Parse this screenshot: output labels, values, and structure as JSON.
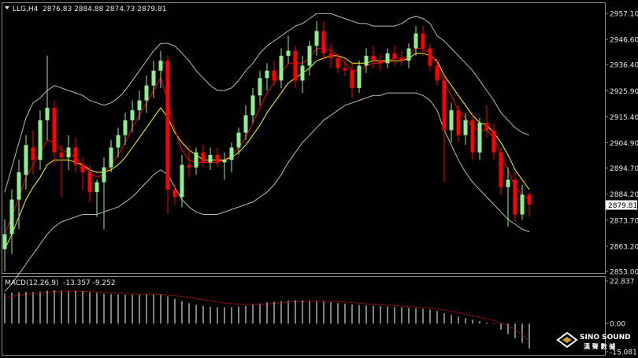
{
  "header": {
    "symbol": "LLG,H4",
    "ohlc": "2876.83 2884.88 2874.73 2879.81"
  },
  "macd_header": {
    "label": "MACD(12,26,9)",
    "values": "-13.357 -9.252"
  },
  "logo": {
    "line1": "SINO SOUND",
    "line2": "漢 聲 數 據"
  },
  "colors": {
    "background": "#000000",
    "up": "#90ee90",
    "down": "#ff0000",
    "bollinger": "#bcbcbc",
    "ma_fast": "#ff0000",
    "ma_slow": "#ffff00",
    "macd_hist": "#ffffff",
    "macd_signal": "#ff0000",
    "price_tag_bg": "#ffffff",
    "price_tag_text": "#000000"
  },
  "chart_data": [
    {
      "type": "candlestick",
      "title": "LLG,H4",
      "ylim": [
        2853.0,
        2957.1
      ],
      "y_ticks": [
        "2957.10",
        "2946.60",
        "2936.40",
        "2925.90",
        "2915.40",
        "2904.90",
        "2894.70",
        "2884.20",
        "2879.81",
        "2873.70",
        "2863.20",
        "2853.00"
      ],
      "current_price": 2879.81,
      "grid": false,
      "candles": [
        [
          2862.0,
          2874.0,
          2853.0,
          2868.0
        ],
        [
          2868.0,
          2886.0,
          2860.0,
          2882.0
        ],
        [
          2882.0,
          2898.0,
          2870.0,
          2893.0
        ],
        [
          2892.0,
          2908.0,
          2886.0,
          2904.0
        ],
        [
          2903.0,
          2910.0,
          2892.0,
          2898.0
        ],
        [
          2898.0,
          2918.0,
          2894.0,
          2914.0
        ],
        [
          2914.0,
          2940.0,
          2906.0,
          2919.0
        ],
        [
          2919.0,
          2922.0,
          2896.0,
          2901.0
        ],
        [
          2901.0,
          2904.0,
          2883.0,
          2899.0
        ],
        [
          2899.0,
          2908.0,
          2894.0,
          2903.0
        ],
        [
          2903.0,
          2907.0,
          2893.0,
          2896.0
        ],
        [
          2896.0,
          2899.0,
          2886.0,
          2893.0
        ],
        [
          2893.0,
          2896.0,
          2881.0,
          2885.0
        ],
        [
          2885.0,
          2890.0,
          2875.0,
          2889.0
        ],
        [
          2889.0,
          2899.0,
          2870.0,
          2895.0
        ],
        [
          2895.0,
          2906.0,
          2893.0,
          2903.0
        ],
        [
          2903.0,
          2911.0,
          2899.0,
          2908.0
        ],
        [
          2908.0,
          2917.0,
          2904.0,
          2914.0
        ],
        [
          2914.0,
          2922.0,
          2909.0,
          2918.0
        ],
        [
          2918.0,
          2926.0,
          2914.0,
          2922.0
        ],
        [
          2922.0,
          2932.0,
          2917.0,
          2928.0
        ],
        [
          2928.0,
          2938.0,
          2923.0,
          2934.0
        ],
        [
          2934.0,
          2942.0,
          2927.0,
          2938.0
        ],
        [
          2938.0,
          2940.0,
          2876.0,
          2886.0
        ],
        [
          2886.0,
          2888.0,
          2880.0,
          2883.0
        ],
        [
          2883.0,
          2900.0,
          2879.0,
          2896.0
        ],
        [
          2896.0,
          2904.0,
          2891.0,
          2895.0
        ],
        [
          2895.0,
          2903.0,
          2892.0,
          2901.0
        ],
        [
          2901.0,
          2904.0,
          2895.0,
          2897.0
        ],
        [
          2897.0,
          2903.0,
          2894.0,
          2900.0
        ],
        [
          2900.0,
          2903.0,
          2895.0,
          2897.0
        ],
        [
          2897.0,
          2901.0,
          2890.0,
          2898.0
        ],
        [
          2898.0,
          2905.0,
          2893.0,
          2903.0
        ],
        [
          2903.0,
          2911.0,
          2900.0,
          2909.0
        ],
        [
          2909.0,
          2920.0,
          2906.0,
          2916.0
        ],
        [
          2916.0,
          2927.0,
          2913.0,
          2924.0
        ],
        [
          2924.0,
          2934.0,
          2920.0,
          2931.0
        ],
        [
          2931.0,
          2937.0,
          2926.0,
          2934.0
        ],
        [
          2934.0,
          2938.0,
          2928.0,
          2930.0
        ],
        [
          2930.0,
          2943.0,
          2927.0,
          2940.0
        ],
        [
          2940.0,
          2948.0,
          2937.0,
          2942.0
        ],
        [
          2942.0,
          2944.0,
          2927.0,
          2930.0
        ],
        [
          2930.0,
          2940.0,
          2925.0,
          2936.0
        ],
        [
          2936.0,
          2946.0,
          2932.0,
          2944.0
        ],
        [
          2944.0,
          2954.0,
          2940.0,
          2950.0
        ],
        [
          2950.0,
          2954.0,
          2938.0,
          2941.0
        ],
        [
          2941.0,
          2945.0,
          2935.0,
          2939.0
        ],
        [
          2939.0,
          2941.0,
          2933.0,
          2935.0
        ],
        [
          2935.0,
          2938.0,
          2932.0,
          2934.0
        ],
        [
          2934.0,
          2937.0,
          2923.0,
          2927.0
        ],
        [
          2927.0,
          2938.0,
          2925.0,
          2936.0
        ],
        [
          2936.0,
          2943.0,
          2933.0,
          2940.0
        ],
        [
          2940.0,
          2944.0,
          2935.0,
          2938.0
        ],
        [
          2938.0,
          2941.0,
          2934.0,
          2937.0
        ],
        [
          2937.0,
          2943.0,
          2935.0,
          2941.0
        ],
        [
          2941.0,
          2944.0,
          2936.0,
          2939.0
        ],
        [
          2939.0,
          2942.0,
          2936.0,
          2938.0
        ],
        [
          2938.0,
          2945.0,
          2935.0,
          2943.0
        ],
        [
          2943.0,
          2952.0,
          2940.0,
          2949.0
        ],
        [
          2949.0,
          2952.0,
          2940.0,
          2943.0
        ],
        [
          2943.0,
          2945.0,
          2934.0,
          2936.0
        ],
        [
          2936.0,
          2939.0,
          2928.0,
          2930.0
        ],
        [
          2930.0,
          2932.0,
          2889.0,
          2910.0
        ],
        [
          2910.0,
          2921.0,
          2905.0,
          2918.0
        ],
        [
          2918.0,
          2920.0,
          2905.0,
          2908.0
        ],
        [
          2908.0,
          2917.0,
          2904.0,
          2914.0
        ],
        [
          2914.0,
          2917.0,
          2898.0,
          2901.0
        ],
        [
          2901.0,
          2915.0,
          2898.0,
          2913.0
        ],
        [
          2913.0,
          2920.0,
          2907.0,
          2910.0
        ],
        [
          2910.0,
          2913.0,
          2898.0,
          2901.0
        ],
        [
          2901.0,
          2903.0,
          2884.0,
          2887.0
        ],
        [
          2887.0,
          2895.0,
          2871.0,
          2890.0
        ],
        [
          2890.0,
          2893.0,
          2873.0,
          2876.0
        ],
        [
          2876.0,
          2888.0,
          2874.0,
          2884.0
        ],
        [
          2884.0,
          2885.0,
          2875.0,
          2880.0
        ]
      ],
      "ma_fast": [
        2868.0,
        2875.0,
        2883.0,
        2891.0,
        2896.0,
        2901.0,
        2906.0,
        2905.0,
        2902.0,
        2901.0,
        2899.0,
        2896.0,
        2893.0,
        2891.0,
        2892.0,
        2896.0,
        2900.0,
        2905.0,
        2911.0,
        2916.0,
        2921.0,
        2926.0,
        2931.0,
        2922.0,
        2910.0,
        2902.0,
        2898.0,
        2897.0,
        2897.0,
        2897.0,
        2897.0,
        2898.0,
        2900.0,
        2903.0,
        2907.0,
        2913.0,
        2919.0,
        2925.0,
        2929.0,
        2933.0,
        2937.0,
        2937.0,
        2937.0,
        2939.0,
        2943.0,
        2943.0,
        2942.0,
        2940.0,
        2937.0,
        2934.0,
        2934.0,
        2936.0,
        2937.0,
        2937.0,
        2938.0,
        2939.0,
        2939.0,
        2940.0,
        2943.0,
        2943.0,
        2941.0,
        2937.0,
        2929.0,
        2924.0,
        2918.0,
        2915.0,
        2911.0,
        2910.0,
        2910.0,
        2907.0,
        2900.0,
        2894.0,
        2887.0,
        2884.0,
        2882.0
      ],
      "ma_slow": [
        2862.0,
        2868.0,
        2875.0,
        2882.0,
        2887.0,
        2891.0,
        2896.0,
        2898.0,
        2898.0,
        2898.0,
        2897.0,
        2896.0,
        2894.0,
        2893.0,
        2893.0,
        2894.0,
        2896.0,
        2899.0,
        2903.0,
        2907.0,
        2911.0,
        2915.0,
        2919.0,
        2915.0,
        2909.0,
        2905.0,
        2902.0,
        2900.0,
        2898.0,
        2898.0,
        2898.0,
        2898.0,
        2899.0,
        2901.0,
        2904.0,
        2908.0,
        2912.0,
        2917.0,
        2921.0,
        2925.0,
        2929.0,
        2931.0,
        2933.0,
        2935.0,
        2938.0,
        2939.0,
        2940.0,
        2940.0,
        2939.0,
        2937.0,
        2937.0,
        2937.0,
        2938.0,
        2938.0,
        2938.0,
        2938.0,
        2938.0,
        2939.0,
        2941.0,
        2941.0,
        2940.0,
        2938.0,
        2932.0,
        2928.0,
        2924.0,
        2920.0,
        2916.0,
        2913.0,
        2912.0,
        2909.0,
        2905.0,
        2900.0,
        2894.0,
        2890.0,
        2886.0
      ],
      "boll_upper": [
        2885.0,
        2895.0,
        2905.0,
        2915.0,
        2921.0,
        2923.0,
        2926.0,
        2928.0,
        2927.0,
        2926.0,
        2925.0,
        2924.0,
        2922.0,
        2921.0,
        2920.0,
        2921.0,
        2923.0,
        2926.0,
        2930.0,
        2934.0,
        2938.0,
        2942.0,
        2945.0,
        2945.0,
        2944.0,
        2941.0,
        2938.0,
        2934.0,
        2931.0,
        2928.0,
        2926.0,
        2926.0,
        2927.0,
        2930.0,
        2934.0,
        2937.0,
        2941.0,
        2944.0,
        2946.0,
        2948.0,
        2950.0,
        2952.0,
        2953.0,
        2955.0,
        2957.0,
        2957.0,
        2957.0,
        2956.0,
        2955.0,
        2954.0,
        2953.0,
        2953.0,
        2952.0,
        2952.0,
        2952.0,
        2952.0,
        2953.0,
        2955.0,
        2956.0,
        2955.0,
        2953.0,
        2948.0,
        2946.0,
        2943.0,
        2940.0,
        2937.0,
        2934.0,
        2930.0,
        2926.0,
        2922.0,
        2917.0,
        2914.0,
        2911.0,
        2909.0,
        2908.0
      ],
      "boll_lower": [
        2845.0,
        2848.0,
        2852.0,
        2856.0,
        2860.0,
        2864.0,
        2868.0,
        2871.0,
        2873.0,
        2874.0,
        2875.0,
        2876.0,
        2876.0,
        2876.0,
        2877.0,
        2878.0,
        2879.0,
        2881.0,
        2883.0,
        2886.0,
        2889.0,
        2892.0,
        2894.0,
        2892.0,
        2887.0,
        2882.0,
        2879.0,
        2877.0,
        2876.0,
        2876.0,
        2876.0,
        2877.0,
        2878.0,
        2879.0,
        2880.0,
        2881.0,
        2883.0,
        2885.0,
        2888.0,
        2892.0,
        2897.0,
        2901.0,
        2905.0,
        2908.0,
        2911.0,
        2914.0,
        2916.0,
        2918.0,
        2920.0,
        2921.0,
        2922.0,
        2923.0,
        2924.0,
        2924.0,
        2925.0,
        2925.0,
        2925.0,
        2925.0,
        2925.0,
        2924.0,
        2922.0,
        2918.0,
        2910.0,
        2904.0,
        2898.0,
        2893.0,
        2889.0,
        2886.0,
        2883.0,
        2880.0,
        2877.0,
        2874.0,
        2872.0,
        2870.0,
        2869.0
      ]
    },
    {
      "type": "bar",
      "title": "MACD(12,26,9)",
      "ylim": [
        -15.081,
        22.837
      ],
      "y_ticks": [
        "22.837",
        "0.00",
        "-15.081"
      ],
      "grid": false,
      "histogram": [
        16.0,
        16.5,
        16.8,
        17.0,
        17.0,
        17.2,
        17.6,
        17.8,
        17.8,
        17.7,
        17.5,
        17.2,
        16.8,
        16.4,
        16.0,
        15.7,
        15.5,
        15.4,
        15.4,
        15.5,
        15.6,
        15.6,
        15.5,
        14.5,
        13.3,
        12.0,
        11.0,
        10.0,
        9.4,
        9.0,
        8.8,
        8.7,
        8.8,
        9.1,
        9.5,
        10.1,
        10.8,
        11.3,
        11.7,
        12.1,
        12.4,
        12.4,
        12.3,
        12.2,
        12.1,
        11.8,
        11.4,
        11.0,
        10.6,
        10.2,
        9.9,
        9.7,
        9.5,
        9.3,
        9.1,
        8.9,
        8.6,
        8.4,
        8.2,
        7.9,
        7.5,
        6.8,
        5.5,
        4.6,
        3.7,
        2.9,
        2.1,
        1.3,
        0.5,
        -0.3,
        -3.3,
        -5.7,
        -7.9,
        -10.3,
        -13.357
      ],
      "signal": [
        14.0,
        14.6,
        15.2,
        15.7,
        16.1,
        16.5,
        16.8,
        17.0,
        17.2,
        17.3,
        17.3,
        17.2,
        17.1,
        16.9,
        16.7,
        16.5,
        16.3,
        16.1,
        15.9,
        15.8,
        15.7,
        15.6,
        15.5,
        15.3,
        15.0,
        14.6,
        14.0,
        13.4,
        12.8,
        12.2,
        11.6,
        11.1,
        10.7,
        10.4,
        10.2,
        10.2,
        10.3,
        10.5,
        10.8,
        11.1,
        11.4,
        11.7,
        11.9,
        12.0,
        12.0,
        12.0,
        11.9,
        11.7,
        11.5,
        11.2,
        10.9,
        10.6,
        10.3,
        10.1,
        9.8,
        9.6,
        9.3,
        9.1,
        8.8,
        8.6,
        8.3,
        7.8,
        7.2,
        6.5,
        5.8,
        5.0,
        4.2,
        3.4,
        2.5,
        1.6,
        0.3,
        -1.2,
        -3.3,
        -5.9,
        -9.252
      ]
    }
  ]
}
